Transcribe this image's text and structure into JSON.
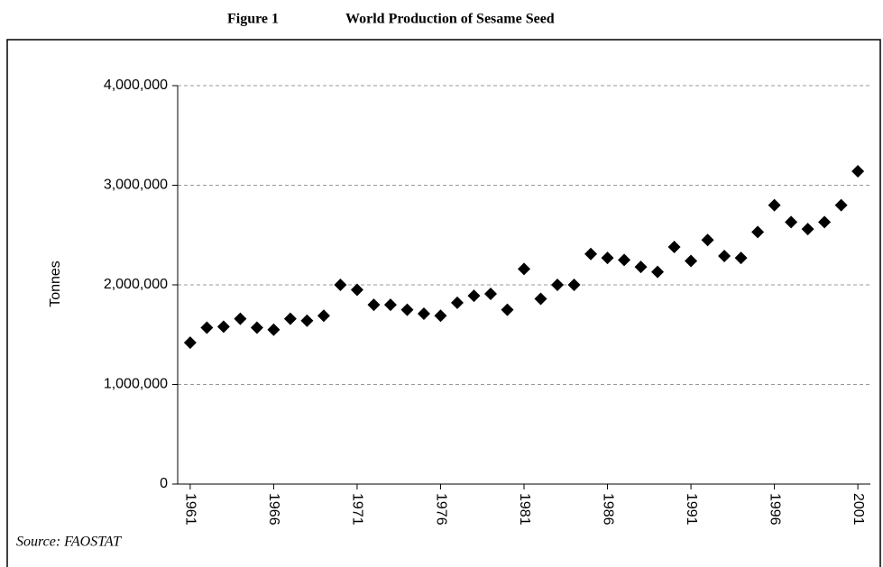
{
  "chart_data": {
    "type": "scatter",
    "figure_label": "Figure 1",
    "title": "World Production of Sesame Seed",
    "y_label": "Tonnes",
    "source": "Source: FAOSTAT",
    "marker": "diamond",
    "color": "#000000",
    "grid": true,
    "x": [
      1961,
      1962,
      1963,
      1964,
      1965,
      1966,
      1967,
      1968,
      1969,
      1970,
      1971,
      1972,
      1973,
      1974,
      1975,
      1976,
      1977,
      1978,
      1979,
      1980,
      1981,
      1982,
      1983,
      1984,
      1985,
      1986,
      1987,
      1988,
      1989,
      1990,
      1991,
      1992,
      1993,
      1994,
      1995,
      1996,
      1997,
      1998,
      1999,
      2000,
      2001
    ],
    "values": [
      1420000,
      1570000,
      1580000,
      1660000,
      1570000,
      1550000,
      1660000,
      1640000,
      1690000,
      2000000,
      1950000,
      1800000,
      1800000,
      1750000,
      1710000,
      1690000,
      1820000,
      1890000,
      1910000,
      1750000,
      2160000,
      1860000,
      2000000,
      2000000,
      2310000,
      2270000,
      2250000,
      2180000,
      2130000,
      2380000,
      2240000,
      2450000,
      2290000,
      2270000,
      2530000,
      2800000,
      2630000,
      2560000,
      2630000,
      2800000,
      3140000
    ],
    "xlim": [
      1960.25,
      2001.75
    ],
    "xticks": [
      1961,
      1966,
      1971,
      1976,
      1981,
      1986,
      1991,
      1996,
      2001
    ],
    "ylim": [
      0,
      4000000
    ],
    "yticks": [
      0,
      {
        "value": 1000000,
        "label": "1,000,000"
      },
      {
        "value": 2000000,
        "label": "2,000,000"
      },
      {
        "value": 3000000,
        "label": "3,000,000"
      },
      {
        "value": 4000000,
        "label": "4,000,000"
      }
    ]
  }
}
